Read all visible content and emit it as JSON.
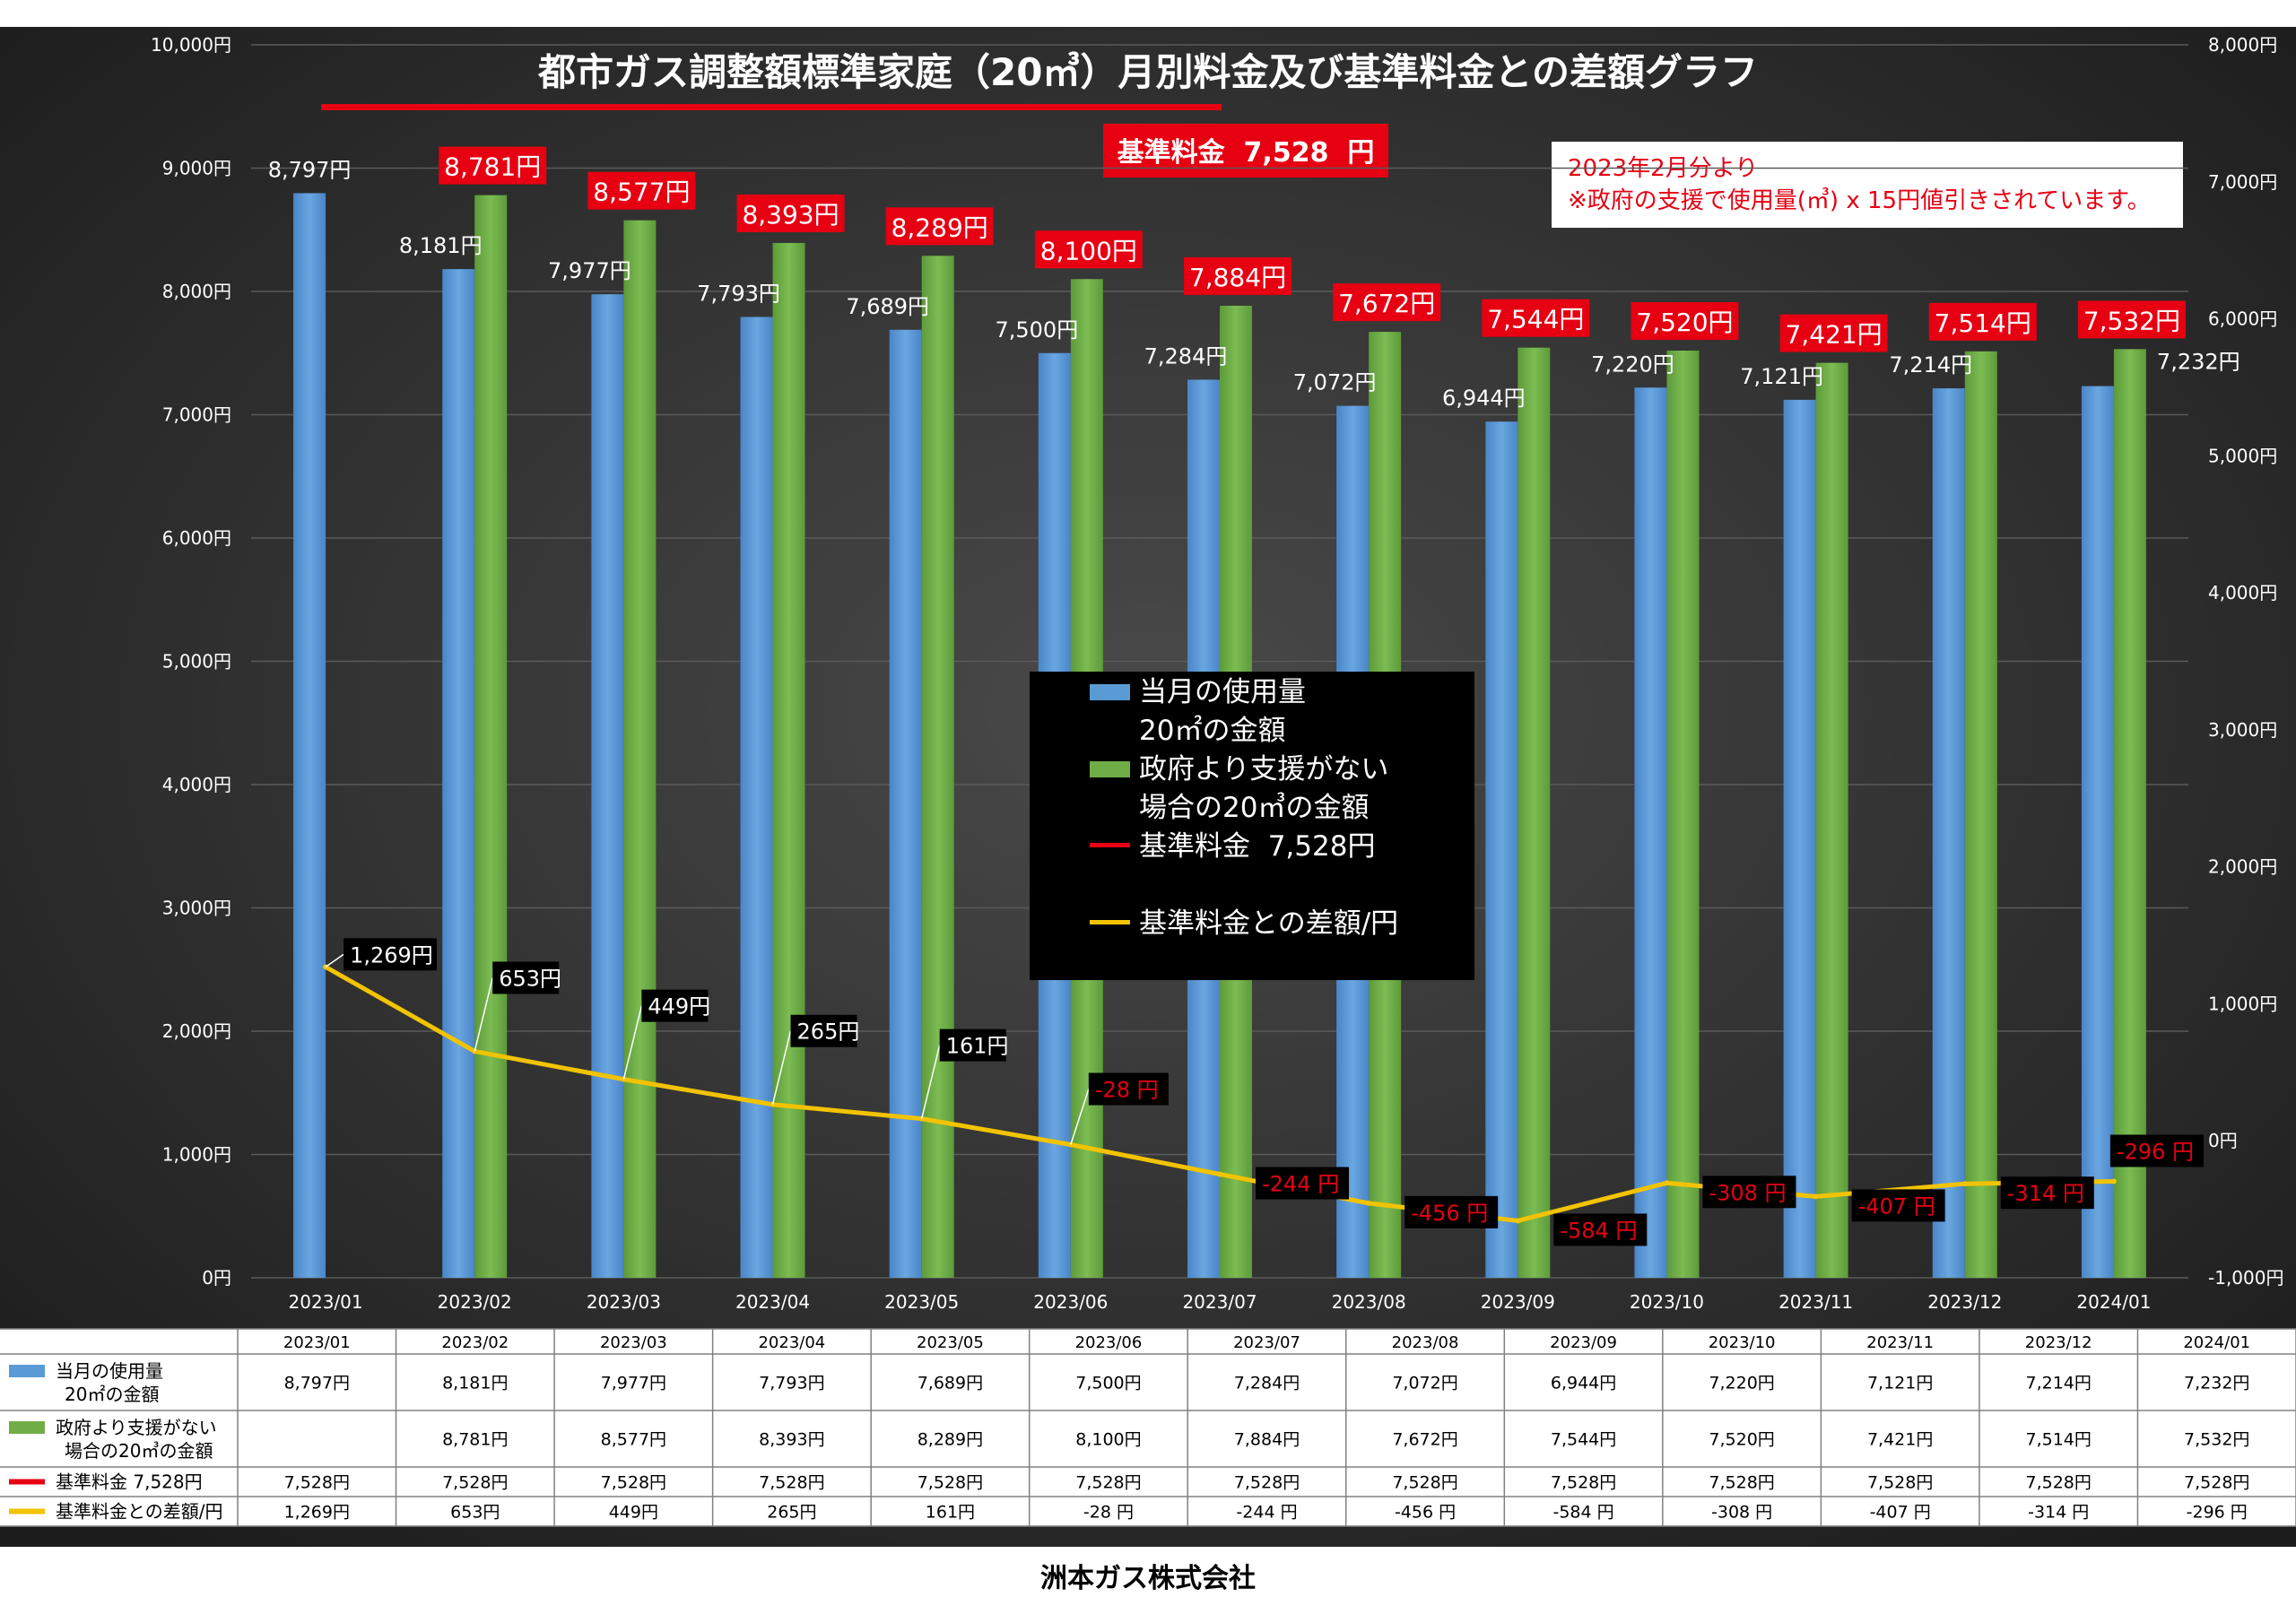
{
  "title": "都市ガス調整額標準家庭（20㎥）月別料金及び基準料金との差額グラフ",
  "standard_box": "基準料金  7,528  円",
  "note": {
    "line1": "2023年2月分より",
    "line2": "※政府の支援で使用量(㎥) x 15円値引きされています。"
  },
  "company": "洲本ガス株式会社",
  "colors": {
    "background": "#2a2a2a",
    "blue": "#5b9bd5",
    "green": "#70ad47",
    "red": "#e60012",
    "yellow": "#f2c300",
    "grid": "#5a5a5a",
    "text": "#ffffff",
    "label_bg": "#000000"
  },
  "legend": {
    "blue_line1": "当月の使用量",
    "blue_line2": "20㎡の金額",
    "green_line1": "政府より支援がない",
    "green_line2": "場合の20㎥の金額",
    "red": "基準料金  7,528円",
    "yellow": "基準料金との差額/円"
  },
  "table": {
    "row_labels": [
      {
        "line1": "当月の使用量",
        "line2": "20㎡の金額",
        "color": "#5b9bd5"
      },
      {
        "line1": "政府より支援がない",
        "line2": "場合の20㎥の金額",
        "color": "#70ad47"
      },
      {
        "line1": "基準料金  7,528円",
        "line2": "",
        "color": "#e60012"
      },
      {
        "line1": "基準料金との差額/円",
        "line2": "",
        "color": "#f2c300"
      }
    ],
    "rows": [
      [
        "8,797円",
        "8,181円",
        "7,977円",
        "7,793円",
        "7,689円",
        "7,500円",
        "7,284円",
        "7,072円",
        "6,944円",
        "7,220円",
        "7,121円",
        "7,214円",
        "7,232円"
      ],
      [
        "",
        "8,781円",
        "8,577円",
        "8,393円",
        "8,289円",
        "8,100円",
        "7,884円",
        "7,672円",
        "7,544円",
        "7,520円",
        "7,421円",
        "7,514円",
        "7,532円"
      ],
      [
        "7,528円",
        "7,528円",
        "7,528円",
        "7,528円",
        "7,528円",
        "7,528円",
        "7,528円",
        "7,528円",
        "7,528円",
        "7,528円",
        "7,528円",
        "7,528円",
        "7,528円"
      ],
      [
        "1,269円",
        "653円",
        "449円",
        "265円",
        "161円",
        "-28 円",
        "-244 円",
        "-456 円",
        "-584 円",
        "-308 円",
        "-407 円",
        "-314 円",
        "-296 円"
      ]
    ]
  },
  "chart_data": {
    "type": "bar",
    "title": "都市ガス調整額標準家庭（20㎥）月別料金及び基準料金との差額グラフ",
    "categories": [
      "2023/01",
      "2023/02",
      "2023/03",
      "2023/04",
      "2023/05",
      "2023/06",
      "2023/07",
      "2023/08",
      "2023/09",
      "2023/10",
      "2023/11",
      "2023/12",
      "2024/01"
    ],
    "ylim": [
      0,
      10000
    ],
    "y_ticks": [
      "0円",
      "1,000円",
      "2,000円",
      "3,000円",
      "4,000円",
      "5,000円",
      "6,000円",
      "7,000円",
      "8,000円",
      "9,000円",
      "10,000円"
    ],
    "y2lim": [
      -1000,
      8000
    ],
    "y2_ticks": [
      "-1,000円",
      "0円",
      "1,000円",
      "2,000円",
      "3,000円",
      "4,000円",
      "5,000円",
      "6,000円",
      "7,000円",
      "8,000円"
    ],
    "grid": true,
    "legend_position": "center",
    "series": [
      {
        "name": "当月の使用量 20㎡の金額",
        "axis": "left",
        "type": "bar",
        "values": [
          8797,
          8181,
          7977,
          7793,
          7689,
          7500,
          7284,
          7072,
          6944,
          7220,
          7121,
          7214,
          7232
        ],
        "labels": [
          "8,797円",
          "8,181円",
          "7,977円",
          "7,793円",
          "7,689円",
          "7,500円",
          "7,284円",
          "7,072円",
          "6,944円",
          "7,220円",
          "7,121円",
          "7,214円",
          "7,232円"
        ]
      },
      {
        "name": "政府より支援がない場合の20㎥の金額",
        "axis": "left",
        "type": "bar",
        "values": [
          null,
          8781,
          8577,
          8393,
          8289,
          8100,
          7884,
          7672,
          7544,
          7520,
          7421,
          7514,
          7532
        ],
        "labels": [
          "",
          "8,781円",
          "8,577円",
          "8,393円",
          "8,289円",
          "8,100円",
          "7,884円",
          "7,672円",
          "7,544円",
          "7,520円",
          "7,421円",
          "7,514円",
          "7,532円"
        ]
      },
      {
        "name": "基準料金  7,528円",
        "axis": "left",
        "type": "reference",
        "values": [
          7528,
          7528,
          7528,
          7528,
          7528,
          7528,
          7528,
          7528,
          7528,
          7528,
          7528,
          7528,
          7528
        ]
      },
      {
        "name": "基準料金との差額/円",
        "axis": "right",
        "type": "line",
        "values": [
          1269,
          653,
          449,
          265,
          161,
          -28,
          -244,
          -456,
          -584,
          -308,
          -407,
          -314,
          -296
        ],
        "labels": [
          "1,269円",
          "653円",
          "449円",
          "265円",
          "161円",
          "-28 円",
          "-244 円",
          "-456 円",
          "-584 円",
          "-308 円",
          "-407 円",
          "-314 円",
          "-296 円"
        ]
      }
    ]
  }
}
